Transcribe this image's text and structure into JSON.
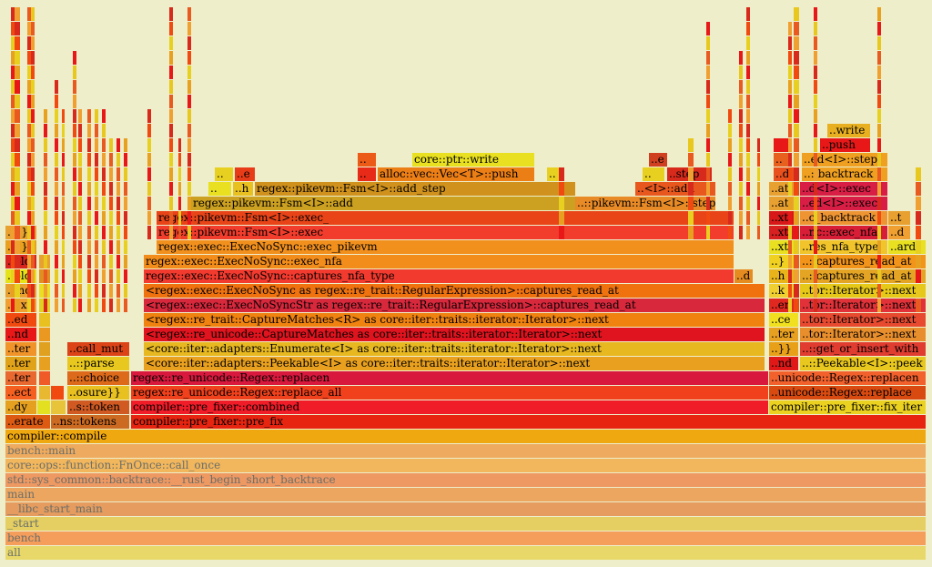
{
  "chart_data": {
    "type": "flamegraph",
    "levels": [
      [
        {
          "label": "all",
          "s": 6,
          "e": 1017,
          "c": "#e8d86a",
          "base": true
        }
      ],
      [
        {
          "label": "bench",
          "s": 6,
          "e": 1017,
          "c": "#f59e5c",
          "base": true
        }
      ],
      [
        {
          "label": "_start",
          "s": 6,
          "e": 1017,
          "c": "#e5cf62",
          "base": true
        }
      ],
      [
        {
          "label": "__libc_start_main",
          "s": 6,
          "e": 1017,
          "c": "#e59c5e",
          "base": true
        }
      ],
      [
        {
          "label": "main",
          "s": 6,
          "e": 1017,
          "c": "#eda660",
          "base": true
        }
      ],
      [
        {
          "label": "std::sys_common::backtrace::__rust_begin_short_backtrace",
          "s": 6,
          "e": 1017,
          "c": "#ee9862",
          "base": true
        }
      ],
      [
        {
          "label": "core::ops::function::FnOnce::call_once",
          "s": 6,
          "e": 1017,
          "c": "#f2b65c",
          "base": true
        }
      ],
      [
        {
          "label": "bench::main",
          "s": 6,
          "e": 1017,
          "c": "#eeaa5e",
          "base": true
        }
      ],
      [
        {
          "label": "compiler::compile",
          "s": 6,
          "e": 1017,
          "c": "#f0a810"
        }
      ],
      [
        {
          "label": "..erate",
          "s": 6,
          "e": 55,
          "c": "#dd5a12"
        },
        {
          "label": "..ns::tokens",
          "s": 56,
          "e": 142,
          "c": "#cc6a22"
        },
        {
          "label": "compiler::pre_fixer::pre_fix",
          "s": 144,
          "e": 1017,
          "c": "#e62410"
        }
      ],
      [
        {
          "label": "..dy",
          "s": 6,
          "e": 40,
          "c": "#e5a020"
        },
        {
          "label": "",
          "s": 41,
          "e": 55,
          "c": "#e2e020"
        },
        {
          "label": "",
          "s": 56,
          "e": 72,
          "c": "#e8c43a"
        },
        {
          "label": "..s::token",
          "s": 74,
          "e": 142,
          "c": "#d05a22"
        },
        {
          "label": "compiler::pre_fixer::combined",
          "s": 144,
          "e": 844,
          "c": "#f01c28"
        },
        {
          "label": "compiler::pre_fixer::fix_iter",
          "s": 845,
          "e": 1017,
          "c": "#ecd220"
        }
      ],
      [
        {
          "label": "..ect",
          "s": 6,
          "e": 40,
          "c": "#f56020"
        },
        {
          "label": "",
          "s": 43,
          "e": 55,
          "c": "#e8b830"
        },
        {
          "label": "",
          "s": 56,
          "e": 70,
          "c": "#f04a10"
        },
        {
          "label": "..osure}}",
          "s": 74,
          "e": 142,
          "c": "#e8c020"
        },
        {
          "label": "regex::re_unicode::Regex::replace_all",
          "s": 144,
          "e": 844,
          "c": "#f0401c"
        },
        {
          "label": "..unicode::Regex::replace",
          "s": 845,
          "e": 1017,
          "c": "#d84a10"
        }
      ],
      [
        {
          "label": "..ter",
          "s": 6,
          "e": 40,
          "c": "#e86830"
        },
        {
          "label": "",
          "s": 43,
          "e": 55,
          "c": "#f05a28"
        },
        {
          "label": "..::choice",
          "s": 74,
          "e": 142,
          "c": "#dc6a1a"
        },
        {
          "label": "regex::re_unicode::Regex::replacen",
          "s": 144,
          "e": 844,
          "c": "#d8183c"
        },
        {
          "label": "..unicode::Regex::replacen",
          "s": 845,
          "e": 1017,
          "c": "#f2602c"
        }
      ],
      [
        {
          "label": "..ter",
          "s": 6,
          "e": 40,
          "c": "#e0a218"
        },
        {
          "label": "",
          "s": 43,
          "e": 55,
          "c": "#e8a020"
        },
        {
          "label": "..::parse",
          "s": 74,
          "e": 142,
          "c": "#e8c81e"
        },
        {
          "label": "<core::iter::adapters::Peekable<I> as core::iter::traits::iterator::Iterator>::next",
          "s": 158,
          "e": 840,
          "c": "#e8a01e"
        },
        {
          "label": "..nd",
          "s": 845,
          "e": 877,
          "c": "#e01818"
        },
        {
          "label": "..::Peekable<I>::peek",
          "s": 879,
          "e": 1017,
          "c": "#e8c81e"
        }
      ],
      [
        {
          "label": "..ter",
          "s": 6,
          "e": 40,
          "c": "#f0942a"
        },
        {
          "label": "",
          "s": 43,
          "e": 55,
          "c": "#e0a020"
        },
        {
          "label": "..call_mut",
          "s": 74,
          "e": 142,
          "c": "#dc4418"
        },
        {
          "label": "<core::iter::adapters::Enumerate<I> as core::iter::traits::iterator::Iterator>::next",
          "s": 158,
          "e": 840,
          "c": "#e8b820"
        },
        {
          "label": "..}}",
          "s": 845,
          "e": 877,
          "c": "#e8a018"
        },
        {
          "label": "..::get_or_insert_with",
          "s": 879,
          "e": 1017,
          "c": "#e03c30"
        }
      ],
      [
        {
          "label": "..nd",
          "s": 6,
          "e": 40,
          "c": "#e81818"
        },
        {
          "label": "",
          "s": 43,
          "e": 55,
          "c": "#ea9820"
        },
        {
          "label": "<regex::re_unicode::CaptureMatches as core::iter::traits::iterator::Iterator>::next",
          "s": 158,
          "e": 840,
          "c": "#e0141e"
        },
        {
          "label": "..ter",
          "s": 845,
          "e": 877,
          "c": "#e8a020"
        },
        {
          "label": "..tor::Iterator>::next",
          "s": 879,
          "e": 1017,
          "c": "#e88e2c"
        }
      ],
      [
        {
          "label": "..ed",
          "s": 6,
          "e": 40,
          "c": "#f04a10"
        },
        {
          "label": "",
          "s": 43,
          "e": 55,
          "c": "#e8c020"
        },
        {
          "label": "<regex::re_trait::CaptureMatches<R> as core::iter::traits::iterator::Iterator>::next",
          "s": 158,
          "e": 840,
          "c": "#f08210"
        },
        {
          "label": "..ce",
          "s": 845,
          "e": 877,
          "c": "#f0e020"
        },
        {
          "label": "..tor::Iterator>::next",
          "s": 879,
          "e": 1017,
          "c": "#e84a30"
        }
      ],
      [
        {
          "label": "..ext",
          "s": 6,
          "e": 40,
          "c": "#f0a030"
        },
        {
          "label": "",
          "s": 43,
          "e": 55,
          "c": "#e0d020"
        },
        {
          "label": "<regex::exec::ExecNoSyncStr as regex::re_trait::RegularExpression>::captures_read_at",
          "s": 158,
          "e": 840,
          "c": "#d8283c"
        },
        {
          "label": "..en",
          "s": 845,
          "e": 877,
          "c": "#e02820"
        },
        {
          "label": "..tor::Iterator>::next",
          "s": 879,
          "e": 1017,
          "c": "#e03238"
        }
      ],
      [
        {
          "label": "..ind",
          "s": 6,
          "e": 40,
          "c": "#e8a030"
        },
        {
          "label": "",
          "s": 43,
          "e": 55,
          "c": "#e8e020"
        },
        {
          "label": "<regex::exec::ExecNoSync as regex::re_trait::RegularExpression>::captures_read_at",
          "s": 158,
          "e": 840,
          "c": "#ef720f"
        },
        {
          "label": "..k",
          "s": 845,
          "e": 877,
          "c": "#f0d030"
        },
        {
          "label": "..tor::Iterator>::next",
          "s": 879,
          "e": 1017,
          "c": "#e6c818"
        }
      ],
      [
        {
          "label": "..old",
          "s": 6,
          "e": 40,
          "c": "#e6e218"
        },
        {
          "label": "",
          "s": 43,
          "e": 55,
          "c": "#e09020"
        },
        {
          "label": "regex::exec::ExecNoSync::captures_nfa_type",
          "s": 158,
          "e": 806,
          "c": "#f23a2e"
        },
        {
          "label": "..d",
          "s": 807,
          "e": 827,
          "c": "#e58b20"
        },
        {
          "label": "..h",
          "s": 845,
          "e": 877,
          "c": "#e8b41a"
        },
        {
          "label": "..::captures_read_at",
          "s": 879,
          "e": 1017,
          "c": "#e4a424"
        }
      ],
      [
        {
          "label": "..old",
          "s": 6,
          "e": 40,
          "c": "#d8241e"
        },
        {
          "label": "",
          "s": 43,
          "e": 55,
          "c": "#e8a030"
        },
        {
          "label": "regex::exec::ExecNoSync::exec_nfa",
          "s": 158,
          "e": 806,
          "c": "#f28c1a"
        },
        {
          "label": "..}",
          "s": 845,
          "e": 877,
          "c": "#f0d020"
        },
        {
          "label": "..::captures_read_at",
          "s": 879,
          "e": 1017,
          "c": "#f2941a"
        }
      ],
      [
        {
          "label": "..}}",
          "s": 6,
          "e": 40,
          "c": "#e8a01e"
        },
        {
          "label": "regex::exec::ExecNoSync::exec_pikevm",
          "s": 172,
          "e": 806,
          "c": "#f2901e"
        },
        {
          "label": "..xt",
          "s": 845,
          "e": 877,
          "c": "#e8e020"
        },
        {
          "label": "..res_nfa_type",
          "s": 879,
          "e": 975,
          "c": "#f0c42a"
        },
        {
          "label": "..ard",
          "s": 976,
          "e": 1017,
          "c": "#e8e020"
        }
      ],
      [
        {
          "label": "..}}",
          "s": 6,
          "e": 40,
          "c": "#e8a030"
        },
        {
          "label": "regex::pikevm::Fsm<I>::exec",
          "s": 172,
          "e": 806,
          "c": "#f23c2c"
        },
        {
          "label": "..xt",
          "s": 845,
          "e": 877,
          "c": "#d82020"
        },
        {
          "label": "..nc::exec_nfa",
          "s": 879,
          "e": 975,
          "c": "#d81e36"
        },
        {
          "label": "..d",
          "s": 976,
          "e": 1000,
          "c": "#f0a030"
        }
      ],
      [
        {
          "label": "regex::pikevm::Fsm<I>::exec_",
          "s": 172,
          "e": 806,
          "c": "#e84418"
        },
        {
          "label": "..xt",
          "s": 845,
          "e": 877,
          "c": "#d81818"
        },
        {
          "label": "..c_backtrack",
          "s": 879,
          "e": 975,
          "c": "#ee9432"
        },
        {
          "label": "..t",
          "s": 976,
          "e": 1000,
          "c": "#e8a030"
        }
      ],
      [
        {
          "label": "regex::pikevm::Fsm<I>::add",
          "s": 210,
          "e": 632,
          "c": "#cca020"
        },
        {
          "label": "..::pikevm::Fsm<I>::step",
          "s": 632,
          "e": 786,
          "c": "#e88a26"
        },
        {
          "label": "..at",
          "s": 845,
          "e": 877,
          "c": "#e8a030"
        },
        {
          "label": "..ed<I>::exec",
          "s": 879,
          "e": 975,
          "c": "#d81e44"
        }
      ],
      [
        {
          "label": "..",
          "s": 229,
          "e": 254,
          "c": "#e8e020"
        },
        {
          "label": "..h",
          "s": 256,
          "e": 278,
          "c": "#e8c020"
        },
        {
          "label": "regex::pikevm::Fsm<I>::add_step",
          "s": 280,
          "e": 632,
          "c": "#d0921c"
        },
        {
          "label": "..<I>::add",
          "s": 698,
          "e": 786,
          "c": "#e8581e"
        },
        {
          "label": "..at",
          "s": 845,
          "e": 877,
          "c": "#e8a030"
        },
        {
          "label": "..d<I>::exec",
          "s": 879,
          "e": 975,
          "c": "#d81e44"
        }
      ],
      [
        {
          "label": "..",
          "s": 236,
          "e": 256,
          "c": "#e8d020"
        },
        {
          "label": "..e",
          "s": 258,
          "e": 280,
          "c": "#e83c18"
        },
        {
          "label": "..",
          "s": 393,
          "e": 413,
          "c": "#e82a18"
        },
        {
          "label": "alloc::vec::Vec<T>::push",
          "s": 415,
          "e": 587,
          "c": "#ec7e16"
        },
        {
          "label": "..",
          "s": 601,
          "e": 620,
          "c": "#e8d020"
        },
        {
          "label": "..",
          "s": 706,
          "e": 730,
          "c": "#e8d020"
        },
        {
          "label": "..step",
          "s": 733,
          "e": 782,
          "c": "#d82a1c"
        },
        {
          "label": "..d",
          "s": 850,
          "e": 877,
          "c": "#e8501e"
        },
        {
          "label": "..::backtrack",
          "s": 881,
          "e": 975,
          "c": "#f0a020"
        }
      ],
      [
        {
          "label": "..",
          "s": 393,
          "e": 413,
          "c": "#ec5a18"
        },
        {
          "label": "core::ptr::write",
          "s": 453,
          "e": 587,
          "c": "#e8e020"
        },
        {
          "label": "..e",
          "s": 713,
          "e": 733,
          "c": "#d04020"
        },
        {
          "label": "..",
          "s": 850,
          "e": 866,
          "c": "#e8601e"
        },
        {
          "label": "..ed<I>::step",
          "s": 881,
          "e": 975,
          "c": "#f0a020"
        }
      ],
      [
        {
          "label": "",
          "s": 850,
          "e": 866,
          "c": "#e81818"
        },
        {
          "label": "..push",
          "s": 901,
          "e": 956,
          "c": "#e81818"
        }
      ],
      [
        {
          "label": "..write",
          "s": 909,
          "e": 956,
          "c": "#e8b020"
        }
      ]
    ]
  }
}
